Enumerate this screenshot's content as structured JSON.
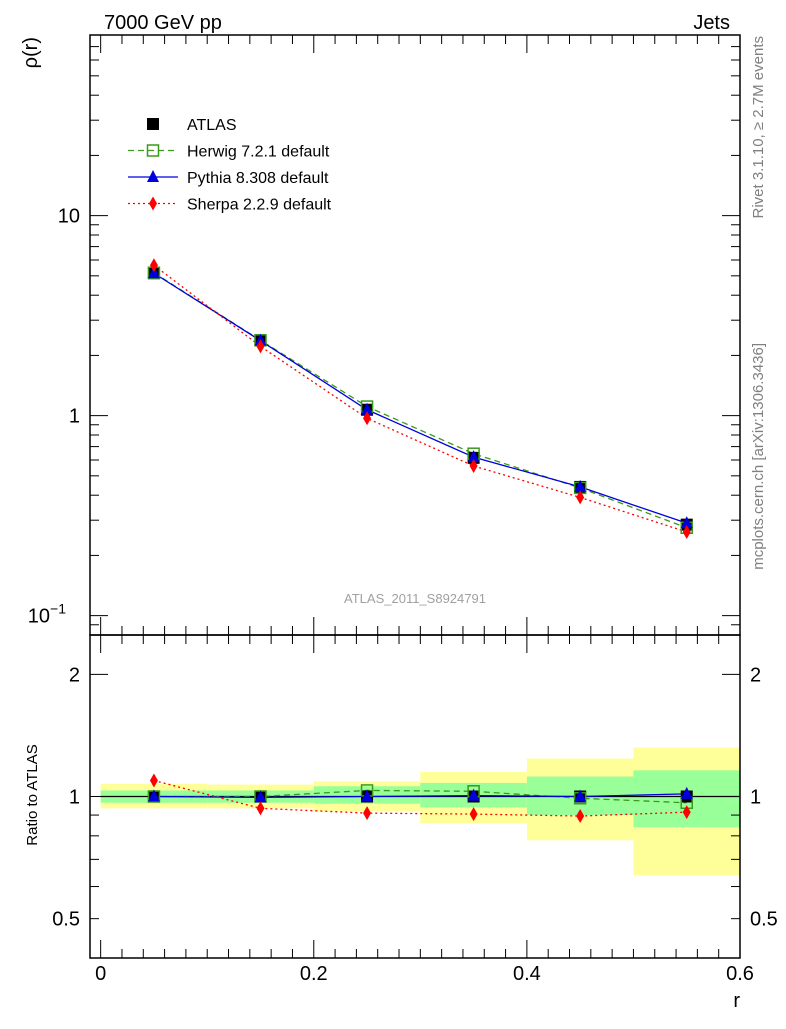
{
  "header": {
    "left": "7000 GeV pp",
    "right": "Jets"
  },
  "side_labels": {
    "rivet": "Rivet 3.1.10, ≥ 2.7M events",
    "mcplots": "mcplots.cern.ch [arXiv:1306.3436]"
  },
  "watermark": "ATLAS_2011_S8924791",
  "colors": {
    "atlas": "#000000",
    "herwig": "#3a9a1a",
    "pythia": "#0000dd",
    "sherpa": "#ff0000",
    "band_inner": "#99ff99",
    "band_outer": "#ffff99"
  },
  "chart_data": [
    {
      "type": "line",
      "panel": "main",
      "ylabel": "ρ(r)",
      "xlabel": "",
      "yscale": "log",
      "ylim": [
        0.08,
        80
      ],
      "xlim": [
        -0.01,
        0.6
      ],
      "yticks": [
        {
          "value": 0.1,
          "label": "10",
          "exp": "−1"
        },
        {
          "value": 1,
          "label": "1",
          "exp": ""
        },
        {
          "value": 10,
          "label": "10",
          "exp": ""
        }
      ],
      "legend_position": "top-left",
      "x": [
        0.05,
        0.15,
        0.25,
        0.35,
        0.45,
        0.55
      ],
      "series": [
        {
          "name": "ATLAS",
          "key": "atlas",
          "marker": "square-filled",
          "line": "none",
          "values": [
            5.15,
            2.38,
            1.07,
            0.615,
            0.44,
            0.285
          ]
        },
        {
          "name": "Herwig 7.2.1 default",
          "key": "herwig",
          "marker": "square-open",
          "line": "dashed",
          "values": [
            5.18,
            2.38,
            1.11,
            0.645,
            0.435,
            0.275
          ]
        },
        {
          "name": "Pythia 8.308 default",
          "key": "pythia",
          "marker": "triangle-filled",
          "line": "solid",
          "values": [
            5.15,
            2.37,
            1.07,
            0.62,
            0.44,
            0.29
          ]
        },
        {
          "name": "Sherpa 2.2.9 default",
          "key": "sherpa",
          "marker": "diamond-filled",
          "line": "dotted",
          "values": [
            5.65,
            2.22,
            0.97,
            0.56,
            0.39,
            0.262
          ]
        }
      ]
    },
    {
      "type": "line",
      "panel": "ratio",
      "ylabel": "Ratio to ATLAS",
      "xlabel": "r",
      "yscale": "log",
      "ylim": [
        0.4,
        2.5
      ],
      "xlim": [
        -0.01,
        0.6
      ],
      "yticks": [
        {
          "value": 0.5,
          "label": "0.5"
        },
        {
          "value": 1,
          "label": "1"
        },
        {
          "value": 2,
          "label": "2"
        }
      ],
      "xticks": [
        {
          "value": 0,
          "label": "0"
        },
        {
          "value": 0.2,
          "label": "0.2"
        },
        {
          "value": 0.4,
          "label": "0.4"
        },
        {
          "value": 0.6,
          "label": "0.6"
        }
      ],
      "x": [
        0.05,
        0.15,
        0.25,
        0.35,
        0.45,
        0.55
      ],
      "bands": [
        {
          "x0": 0.0,
          "x1": 0.1,
          "inner": [
            0.965,
            1.035
          ],
          "outer": [
            0.935,
            1.075
          ]
        },
        {
          "x0": 0.1,
          "x1": 0.2,
          "inner": [
            0.965,
            1.035
          ],
          "outer": [
            0.935,
            1.07
          ]
        },
        {
          "x0": 0.2,
          "x1": 0.3,
          "inner": [
            0.96,
            1.06
          ],
          "outer": [
            0.92,
            1.09
          ]
        },
        {
          "x0": 0.3,
          "x1": 0.4,
          "inner": [
            0.94,
            1.08
          ],
          "outer": [
            0.86,
            1.15
          ]
        },
        {
          "x0": 0.4,
          "x1": 0.5,
          "inner": [
            0.9,
            1.12
          ],
          "outer": [
            0.78,
            1.24
          ]
        },
        {
          "x0": 0.5,
          "x1": 0.6,
          "inner": [
            0.84,
            1.16
          ],
          "outer": [
            0.64,
            1.32
          ]
        }
      ],
      "series": [
        {
          "key": "atlas",
          "marker": "square-filled",
          "line": "none",
          "values": [
            1.0,
            1.0,
            1.0,
            1.0,
            1.0,
            1.0
          ]
        },
        {
          "key": "herwig",
          "marker": "square-open",
          "line": "dashed",
          "values": [
            1.0,
            1.0,
            1.035,
            1.03,
            0.99,
            0.965
          ]
        },
        {
          "key": "pythia",
          "marker": "triangle-filled",
          "line": "solid",
          "values": [
            1.0,
            0.995,
            1.0,
            1.005,
            1.0,
            1.015
          ]
        },
        {
          "key": "sherpa",
          "marker": "diamond-filled",
          "line": "dotted",
          "values": [
            1.095,
            0.935,
            0.91,
            0.905,
            0.895,
            0.915
          ]
        }
      ]
    }
  ]
}
